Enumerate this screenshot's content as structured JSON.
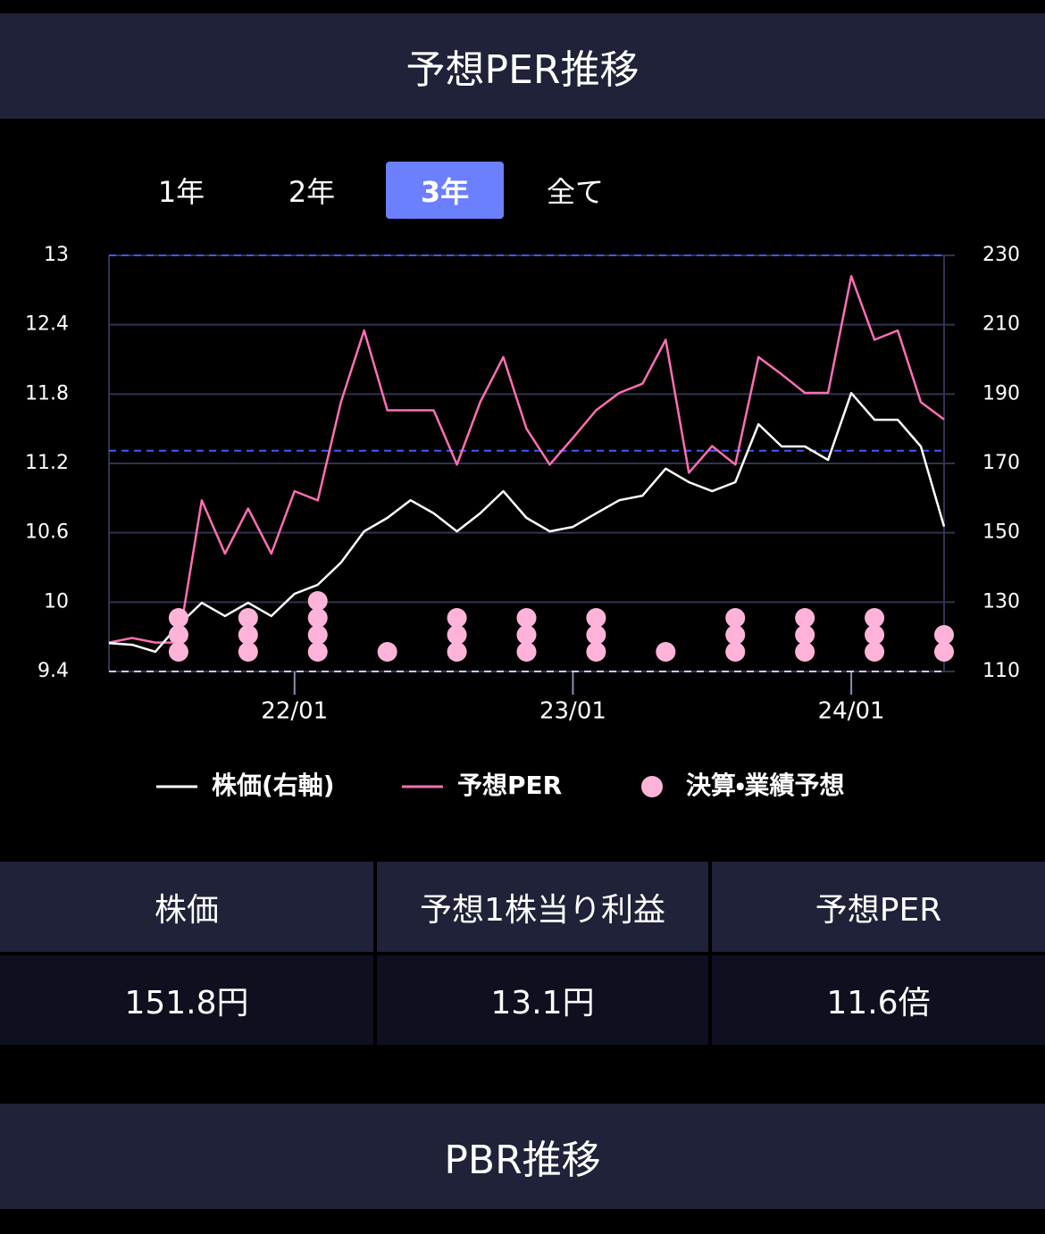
{
  "header": {
    "title": "予想PER推移"
  },
  "tabs": {
    "items": [
      "1年",
      "2年",
      "3年",
      "全て"
    ],
    "selected": 2
  },
  "chart_data": {
    "type": "line",
    "x": [
      "21/05",
      "21/06",
      "21/07",
      "21/08",
      "21/09",
      "21/10",
      "21/11",
      "21/12",
      "22/01",
      "22/02",
      "22/03",
      "22/04",
      "22/05",
      "22/06",
      "22/07",
      "22/08",
      "22/09",
      "22/10",
      "22/11",
      "22/12",
      "23/01",
      "23/02",
      "23/03",
      "23/04",
      "23/05",
      "23/06",
      "23/07",
      "23/08",
      "23/09",
      "23/10",
      "23/11",
      "23/12",
      "24/01",
      "24/02",
      "24/03",
      "24/04",
      "24/05"
    ],
    "xlim": [
      "21/05",
      "24/05"
    ],
    "xticks": [
      "22/01",
      "23/01",
      "24/01"
    ],
    "ylim": [
      9.4,
      13
    ],
    "yticks": [
      9.4,
      10,
      10.6,
      11.2,
      11.8,
      12.4,
      13
    ],
    "y2lim": [
      110,
      230
    ],
    "y2ticks": [
      110,
      130,
      150,
      170,
      190,
      210,
      230
    ],
    "grid": true,
    "reference_lines": [
      13,
      11.31,
      9.4
    ],
    "series": [
      {
        "name": "株価(右軸)",
        "color": "#ffffff",
        "axis": "y2",
        "values": [
          118.2,
          117.7,
          115.7,
          123.4,
          129.8,
          126.0,
          129.8,
          126.0,
          132.4,
          135.0,
          141.4,
          150.4,
          154.3,
          159.4,
          155.6,
          150.4,
          155.6,
          162.0,
          154.3,
          150.4,
          151.7,
          155.6,
          159.4,
          160.7,
          168.5,
          164.6,
          162.0,
          164.6,
          181.3,
          174.9,
          174.9,
          171.0,
          190.3,
          182.6,
          182.6,
          174.9,
          151.8
        ]
      },
      {
        "name": "予想PER",
        "color": "#ff6eb4",
        "values": [
          9.65,
          9.69,
          9.65,
          9.65,
          10.88,
          10.42,
          10.81,
          10.42,
          10.96,
          10.88,
          11.73,
          12.35,
          11.66,
          11.66,
          11.66,
          11.19,
          11.73,
          12.12,
          11.5,
          11.19,
          11.42,
          11.66,
          11.81,
          11.89,
          12.27,
          11.12,
          11.35,
          11.19,
          12.12,
          11.97,
          11.81,
          11.81,
          12.82,
          12.27,
          12.35,
          11.73,
          11.58
        ]
      }
    ],
    "events": {
      "name": "決算・業績予想",
      "color": "#ffb3d9",
      "x": [
        "21/08",
        "21/11",
        "22/02",
        "22/05",
        "22/08",
        "22/11",
        "23/02",
        "23/05",
        "23/08",
        "23/11",
        "24/02",
        "24/05"
      ],
      "counts": [
        3,
        3,
        4,
        1,
        3,
        3,
        3,
        1,
        3,
        3,
        3,
        2
      ]
    }
  },
  "table": {
    "headers": [
      "株価",
      "予想1株当り利益",
      "予想PER"
    ],
    "rows": [
      [
        "151.8円",
        "13.1円",
        "11.6倍"
      ]
    ]
  },
  "next_section": {
    "title": "PBR推移"
  }
}
